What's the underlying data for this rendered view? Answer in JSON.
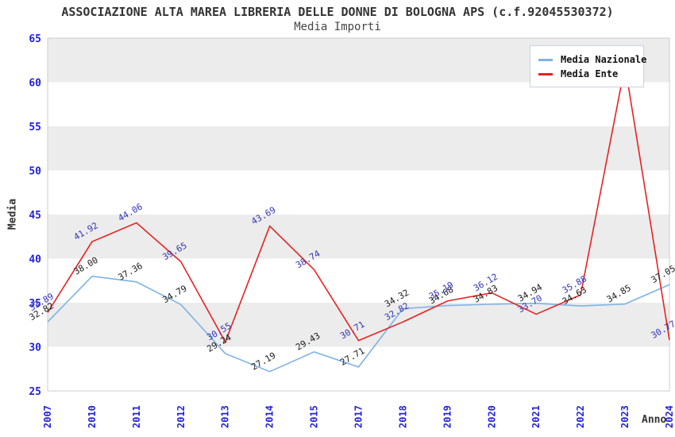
{
  "page": {
    "title": "ASSOCIAZIONE ALTA MAREA LIBRERIA DELLE DONNE DI BOLOGNA APS (c.f.92045530372)",
    "subtitle": "Media Importi"
  },
  "axes": {
    "y_label": "Media",
    "x_label": "Anno"
  },
  "legend": {
    "items": [
      {
        "label": "Media Nazionale",
        "color": "#7eb2e6"
      },
      {
        "label": "Media Ente",
        "color": "#e62222"
      }
    ]
  },
  "chart_data": {
    "type": "line",
    "title": "ASSOCIAZIONE ALTA MAREA LIBRERIA DELLE DONNE DI BOLOGNA APS (c.f.92045530372)",
    "subtitle": "Media Importi",
    "xlabel": "Anno",
    "ylabel": "Media",
    "ylim": [
      25,
      65
    ],
    "yticks": [
      25,
      30,
      35,
      40,
      45,
      50,
      55,
      60,
      65
    ],
    "grid": "alternating-horizontal-bands",
    "band_color": "#ececec",
    "plot_border_color": "#cccccc",
    "tick_label_color": "#2222dd",
    "legend_position": "top-right",
    "categories": [
      "2007",
      "2010",
      "2011",
      "2012",
      "2013",
      "2014",
      "2015",
      "2017",
      "2018",
      "2019",
      "2020",
      "2021",
      "2022",
      "2023",
      "2024"
    ],
    "series": [
      {
        "name": "Media Nazionale",
        "color": "#7eb2e6",
        "label_color": "#1a1a1a",
        "values": [
          32.82,
          38.0,
          37.36,
          34.79,
          29.24,
          27.19,
          29.43,
          27.71,
          34.32,
          34.68,
          34.83,
          34.94,
          34.63,
          34.85,
          37.05
        ],
        "point_labels": [
          "32.82",
          "38.00",
          "37.36",
          "34.79",
          "29.24",
          "27.19",
          "29.43",
          "27.71",
          "34.32",
          "34.68",
          "34.83",
          "34.94",
          "34.63",
          "34.85",
          "37.05"
        ]
      },
      {
        "name": "Media Ente",
        "color": "#e62222",
        "label_color": "#3333bb",
        "values": [
          33.89,
          41.92,
          44.06,
          39.65,
          30.55,
          43.69,
          38.74,
          30.71,
          32.82,
          35.19,
          36.12,
          33.7,
          35.88,
          61.9,
          30.77
        ],
        "point_labels": [
          "33.89",
          "41.92",
          "44.06",
          "39.65",
          "30.55",
          "43.69",
          "38.74",
          "30.71",
          "32.82",
          "35.19",
          "36.12",
          "33.70",
          "35.88",
          null,
          "30.77"
        ]
      }
    ]
  }
}
